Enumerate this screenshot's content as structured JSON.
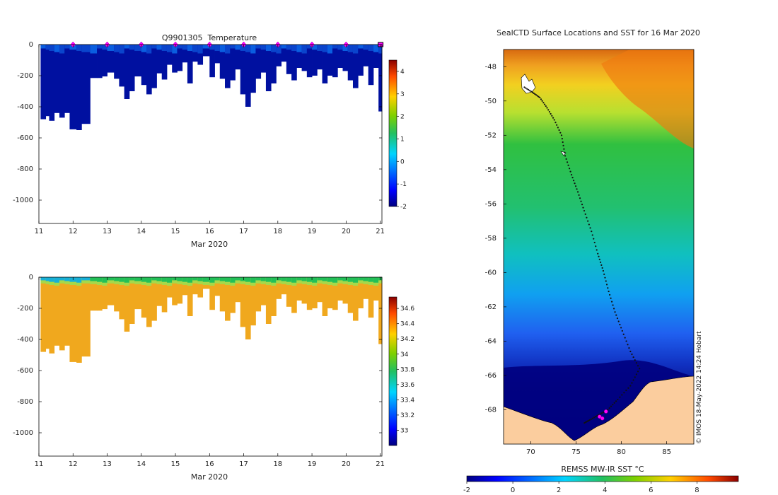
{
  "chart_data": [
    {
      "type": "heatmap",
      "title": "Q9901305  Temperature",
      "xlabel": "Mar 2020",
      "ylabel": "",
      "x_ticks": [
        "11",
        "12",
        "13",
        "14",
        "15",
        "16",
        "17",
        "18",
        "19",
        "20",
        "21"
      ],
      "y_ticks": [
        "0",
        "-200",
        "-400",
        "-600",
        "-800",
        "-1000"
      ],
      "xlim": [
        11,
        21.05
      ],
      "ylim": [
        -1150,
        0
      ],
      "colorbar_ticks": [
        "-2",
        "-1",
        "0",
        "1",
        "2",
        "3",
        "4"
      ],
      "colorbar_range": [
        -2,
        4.5
      ],
      "surface_markers_day": [
        12,
        13,
        14,
        15,
        16,
        17,
        18,
        19,
        20
      ],
      "profile_start_day": [
        11.05,
        11.2,
        11.3,
        11.45,
        11.6,
        11.75,
        11.9,
        12.1,
        12.25,
        12.5,
        12.7,
        12.85,
        13.0,
        13.2,
        13.35,
        13.5,
        13.65,
        13.8,
        14.0,
        14.15,
        14.3,
        14.45,
        14.6,
        14.75,
        14.9,
        15.05,
        15.2,
        15.35,
        15.5,
        15.65,
        15.8,
        16.0,
        16.15,
        16.3,
        16.45,
        16.6,
        16.75,
        16.9,
        17.05,
        17.2,
        17.35,
        17.5,
        17.65,
        17.8,
        17.95,
        18.1,
        18.25,
        18.4,
        18.55,
        18.7,
        18.85,
        19.0,
        19.15,
        19.3,
        19.45,
        19.6,
        19.75,
        19.9,
        20.05,
        20.2,
        20.35,
        20.5,
        20.65,
        20.8,
        20.95
      ],
      "profile_max_depth_m": [
        480,
        460,
        490,
        440,
        470,
        440,
        545,
        550,
        510,
        215,
        215,
        205,
        180,
        220,
        270,
        350,
        300,
        205,
        260,
        320,
        280,
        185,
        225,
        130,
        180,
        170,
        115,
        250,
        110,
        130,
        75,
        210,
        120,
        220,
        280,
        230,
        160,
        320,
        400,
        310,
        220,
        180,
        300,
        250,
        140,
        110,
        190,
        230,
        150,
        170,
        210,
        200,
        160,
        250,
        200,
        210,
        150,
        170,
        230,
        280,
        200,
        140,
        260,
        150,
        430
      ]
    },
    {
      "type": "heatmap",
      "title": "",
      "xlabel": "Mar 2020",
      "ylabel": "",
      "x_ticks": [
        "11",
        "12",
        "13",
        "14",
        "15",
        "16",
        "17",
        "18",
        "19",
        "20",
        "21"
      ],
      "y_ticks": [
        "0",
        "-200",
        "-400",
        "-600",
        "-800",
        "-1000"
      ],
      "xlim": [
        11,
        21.05
      ],
      "ylim": [
        -1150,
        0
      ],
      "colorbar_ticks": [
        "33",
        "33.2",
        "33.4",
        "33.6",
        "33.8",
        "34",
        "34.2",
        "34.4",
        "34.6"
      ],
      "colorbar_range": [
        32.8,
        34.75
      ]
    },
    {
      "type": "heatmap",
      "title": "SealCTD Surface Locations and SST for 16 Mar 2020",
      "xlabel": "",
      "ylabel": "",
      "x_ticks": [
        "70",
        "75",
        "80",
        "85"
      ],
      "x_tick_values": [
        70,
        75,
        80,
        85
      ],
      "y_ticks": [
        "-48",
        "-50",
        "-52",
        "-54",
        "-56",
        "-58",
        "-60",
        "-62",
        "-64",
        "-66",
        "-68"
      ],
      "y_tick_values": [
        -48,
        -50,
        -52,
        -54,
        -56,
        -58,
        -60,
        -62,
        -64,
        -66,
        -68
      ],
      "xlim": [
        67,
        88
      ],
      "ylim": [
        -70,
        -47
      ],
      "colorbar_label": "REMSS MW-IR SST °C",
      "colorbar_ticks": [
        "-2",
        "0",
        "2",
        "4",
        "6",
        "8"
      ],
      "colorbar_tick_values": [
        -2,
        0,
        2,
        4,
        6,
        8
      ],
      "colorbar_range": [
        -2,
        9.8
      ],
      "track": [
        [
          69.3,
          -49.2
        ],
        [
          70.2,
          -49.5
        ],
        [
          71.0,
          -49.8
        ],
        [
          71.8,
          -50.4
        ],
        [
          72.6,
          -51.1
        ],
        [
          73.4,
          -52.0
        ],
        [
          73.8,
          -53.2
        ],
        [
          74.5,
          -54.3
        ],
        [
          75.2,
          -55.3
        ],
        [
          75.9,
          -56.4
        ],
        [
          76.7,
          -57.6
        ],
        [
          77.4,
          -58.9
        ],
        [
          78.0,
          -59.9
        ],
        [
          78.6,
          -61.1
        ],
        [
          79.3,
          -62.3
        ],
        [
          80.1,
          -63.4
        ],
        [
          81.0,
          -64.6
        ],
        [
          82.0,
          -65.6
        ],
        [
          81.0,
          -66.6
        ],
        [
          79.6,
          -67.4
        ],
        [
          78.5,
          -68.0
        ],
        [
          77.5,
          -68.3
        ],
        [
          76.5,
          -68.6
        ],
        [
          75.8,
          -68.8
        ]
      ],
      "surface_locations": [
        [
          78.3,
          -68.1
        ],
        [
          77.6,
          -68.4
        ],
        [
          77.9,
          -68.5
        ]
      ],
      "credit": "© IMOS 18-May-2022 14:24 Hobart"
    }
  ]
}
